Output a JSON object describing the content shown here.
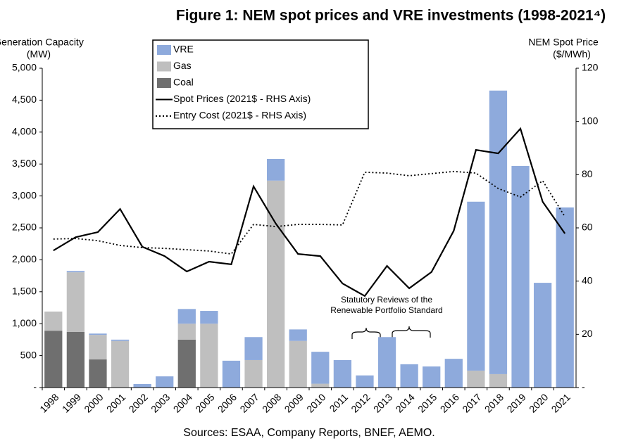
{
  "chart_data": {
    "type": "bar",
    "title": "Figure 1:  NEM spot prices and VRE investments (1998-2021⁴)",
    "ylabel": [
      "Generation Capacity",
      "(MW)"
    ],
    "y2label": [
      "NEM Spot Price",
      "($/MWh)"
    ],
    "annotation": [
      "Statutory Reviews of the",
      "Renewable Portfolio Standard"
    ],
    "source": "Sources: ESAA, Company Reports, BNEF, AEMO.",
    "categories": [
      "1998",
      "1999",
      "2000",
      "2001",
      "2002",
      "2003",
      "2004",
      "2005",
      "2006",
      "2007",
      "2008",
      "2009",
      "2010",
      "2011",
      "2012",
      "2013",
      "2014",
      "2015",
      "2016",
      "2017",
      "2018",
      "2019",
      "2020",
      "2021"
    ],
    "stacked": true,
    "series": [
      {
        "name": "VRE",
        "type": "bar",
        "color": "#8eaadc",
        "values": [
          0,
          20,
          20,
          20,
          55,
          175,
          230,
          200,
          420,
          360,
          340,
          180,
          500,
          430,
          190,
          790,
          365,
          330,
          450,
          2645,
          4440,
          3470,
          1640,
          2820
        ]
      },
      {
        "name": "Gas",
        "type": "bar",
        "color": "#bfbfbf",
        "values": [
          300,
          935,
          385,
          730,
          0,
          0,
          250,
          1000,
          0,
          430,
          3240,
          730,
          60,
          0,
          0,
          0,
          0,
          0,
          0,
          265,
          210,
          0,
          0,
          0
        ]
      },
      {
        "name": "Coal",
        "type": "bar",
        "color": "#6f6f6f",
        "values": [
          890,
          870,
          440,
          0,
          0,
          0,
          750,
          0,
          0,
          0,
          0,
          0,
          0,
          0,
          0,
          0,
          0,
          0,
          0,
          0,
          0,
          0,
          0,
          0
        ]
      },
      {
        "name": "Spot Prices (2021$ - RHS Axis)",
        "type": "line",
        "axis": "y2",
        "color": "#000000",
        "dash": "solid",
        "values": [
          51.5,
          56.5,
          58.4,
          67.1,
          52.9,
          49.4,
          43.6,
          47.3,
          46.3,
          75.6,
          61.6,
          50.2,
          49.4,
          39.1,
          34.4,
          45.7,
          37.3,
          43.4,
          58.9,
          89.3,
          88.0,
          97.3,
          69.8,
          57.9
        ]
      },
      {
        "name": "Entry Cost (2021$ - RHS Axis)",
        "type": "line",
        "axis": "y2",
        "color": "#000000",
        "dash": "dotted",
        "values": [
          55.8,
          56.0,
          55.2,
          53.4,
          52.6,
          52.3,
          51.8,
          51.3,
          50.2,
          61.3,
          60.5,
          61.3,
          61.3,
          61.1,
          80.9,
          80.6,
          79.6,
          80.4,
          81.2,
          80.6,
          74.8,
          71.6,
          77.7,
          64.2
        ]
      }
    ],
    "ylim": [
      0,
      5000
    ],
    "yticks": [
      {
        "value": 0,
        "label": "-"
      },
      500,
      {
        "value": 1000,
        "label": "1,000"
      },
      {
        "value": 1500,
        "label": "1,500"
      },
      {
        "value": 2000,
        "label": "2,000"
      },
      {
        "value": 2500,
        "label": "2,500"
      },
      {
        "value": 3000,
        "label": "3,000"
      },
      {
        "value": 3500,
        "label": "3,500"
      },
      {
        "value": 4000,
        "label": "4,000"
      },
      {
        "value": 4500,
        "label": "4,500"
      },
      {
        "value": 5000,
        "label": "5,000"
      }
    ],
    "y2lim": [
      0,
      120
    ],
    "y2ticks": [
      {
        "value": 0,
        "label": "-"
      },
      20,
      40,
      60,
      80,
      100,
      120
    ],
    "grid": false
  }
}
